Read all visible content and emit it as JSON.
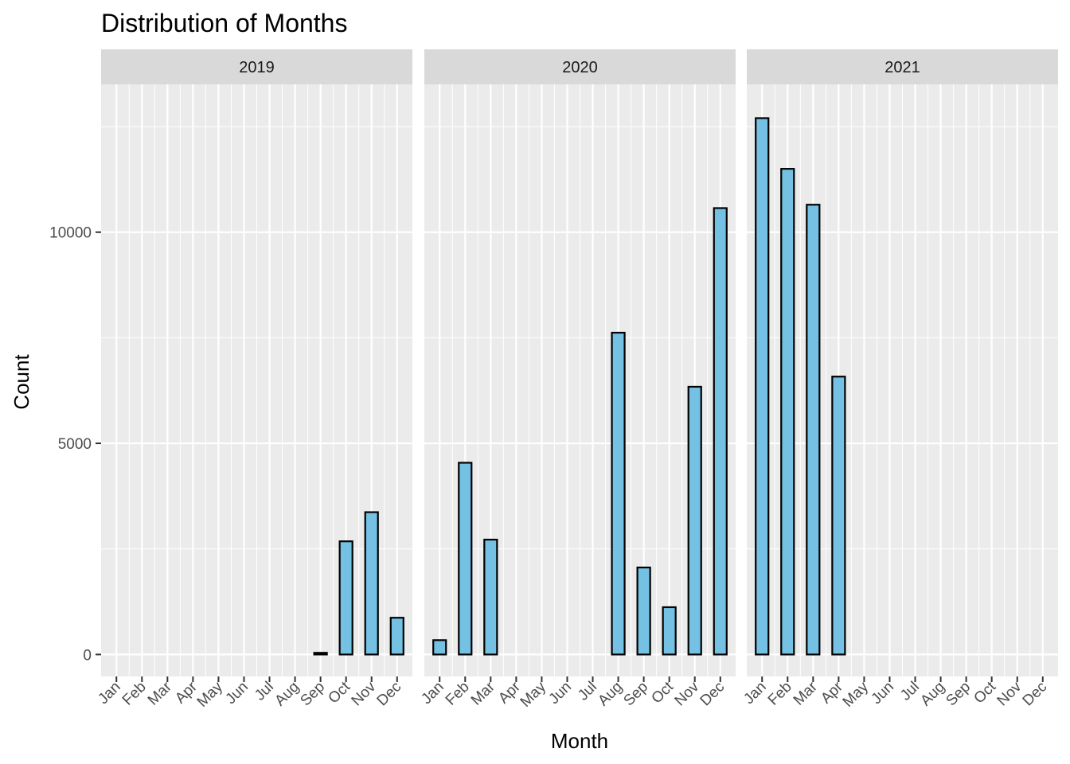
{
  "chart_data": {
    "type": "bar",
    "title": "Distribution of Months",
    "xlabel": "Month",
    "ylabel": "Count",
    "categories": [
      "Jan",
      "Feb",
      "Mar",
      "Apr",
      "May",
      "Jun",
      "Jul",
      "Aug",
      "Sep",
      "Oct",
      "Nov",
      "Dec"
    ],
    "ylim": [
      -520,
      13500
    ],
    "yticks": [
      0,
      5000,
      10000
    ],
    "ytick_labels": [
      "0",
      "5000",
      "10000"
    ],
    "grid": true,
    "facets": [
      {
        "label": "2019",
        "values": [
          0,
          0,
          0,
          0,
          0,
          0,
          0,
          0,
          40,
          2680,
          3370,
          870
        ]
      },
      {
        "label": "2020",
        "values": [
          340,
          4540,
          2720,
          0,
          0,
          0,
          0,
          7620,
          2060,
          1120,
          6340,
          10570
        ]
      },
      {
        "label": "2021",
        "values": [
          12700,
          11500,
          10650,
          6580,
          0,
          0,
          0,
          0,
          0,
          0,
          0,
          0
        ]
      }
    ],
    "colors": {
      "bar_fill": "#74c1e4",
      "bar_outline": "#000000",
      "panel_bg": "#ebebeb",
      "strip_bg": "#d9d9d9",
      "grid": "#ffffff"
    }
  }
}
